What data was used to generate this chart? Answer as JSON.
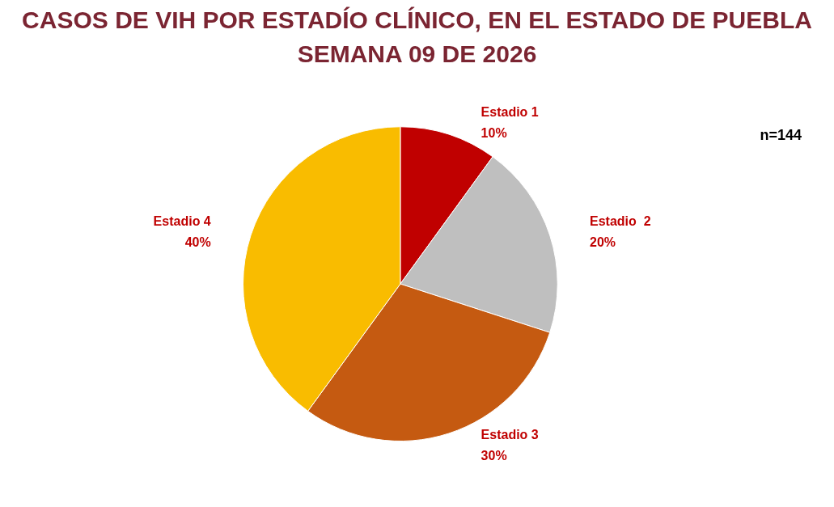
{
  "chart_data": {
    "type": "pie",
    "title": "CASOS DE VIH POR ESTADÍO CLÍNICO, EN EL ESTADO DE PUEBLA",
    "subtitle": "SEMANA 09 DE 2026",
    "categories": [
      "Estadio 1",
      "Estadio  2",
      "Estadio 3",
      "Estadio 4"
    ],
    "values": [
      10,
      20,
      30,
      40
    ],
    "value_labels": [
      "10%",
      "20%",
      "30%",
      "40%"
    ],
    "colors": [
      "#c00000",
      "#bfbfbf",
      "#c55a11",
      "#f9bc00"
    ],
    "annotations": [
      "n=144"
    ],
    "legend": false
  }
}
